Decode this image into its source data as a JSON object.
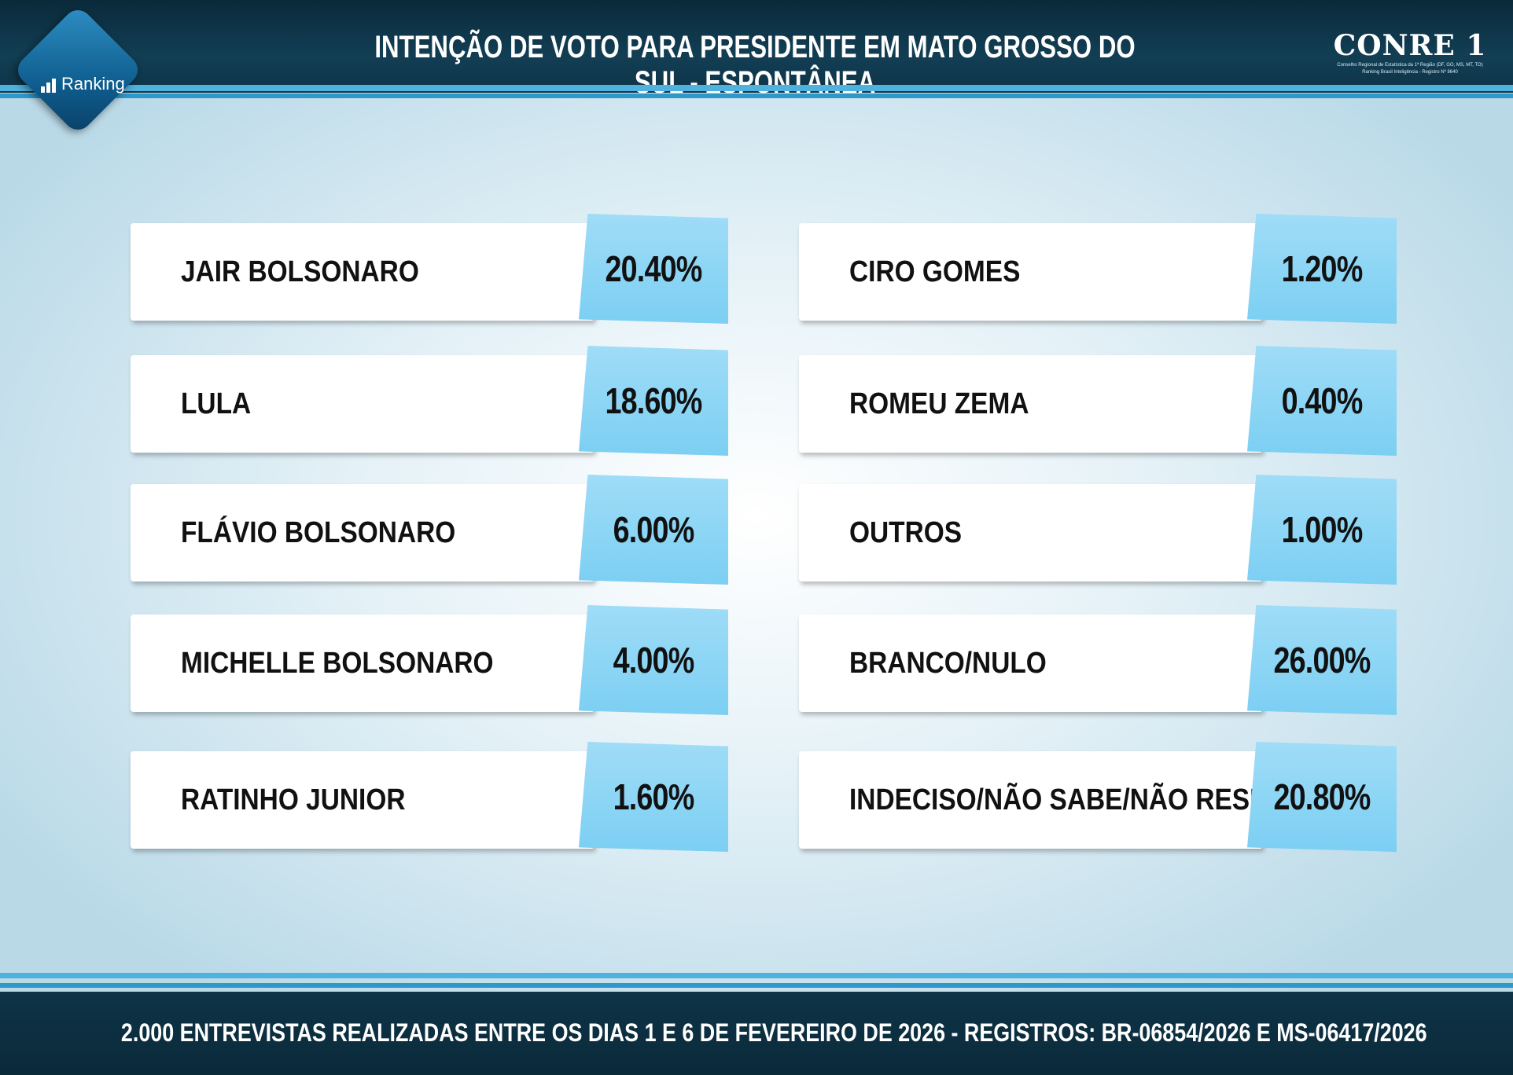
{
  "header": {
    "title": "INTENÇÃO DE VOTO PARA PRESIDENTE EM MATO GROSSO DO SUL - ESPONTÂNEA",
    "logo_label": "Ranking",
    "conre_name": "CONRE 1",
    "conre_sub1": "Conselho Regional de Estatística da 1ª Região (DF, GO, MS, MT, TO)",
    "conre_sub2": "Ranking Brasil Inteligência - Registro Nº 8640"
  },
  "left_column": [
    {
      "name": "JAIR BOLSONARO",
      "value": "20.40%"
    },
    {
      "name": "LULA",
      "value": "18.60%"
    },
    {
      "name": "FLÁVIO BOLSONARO",
      "value": "6.00%"
    },
    {
      "name": "MICHELLE BOLSONARO",
      "value": "4.00%"
    },
    {
      "name": "RATINHO JUNIOR",
      "value": "1.60%"
    }
  ],
  "right_column": [
    {
      "name": "CIRO GOMES",
      "value": "1.20%"
    },
    {
      "name": "ROMEU ZEMA",
      "value": "0.40%"
    },
    {
      "name": "OUTROS",
      "value": "1.00%"
    },
    {
      "name": "BRANCO/NULO",
      "value": "26.00%"
    },
    {
      "name": "INDECISO/NÃO SABE/NÃO RESP.",
      "value": "20.80%"
    }
  ],
  "footer": {
    "text": "2.000 ENTREVISTAS REALIZADAS ENTRE OS DIAS 1 E 6 DE FEVEREIRO DE 2026 - REGISTROS: BR-06854/2026 E MS-06417/2026"
  },
  "colors": {
    "header_bg": "#123e54",
    "stripe": "#4fb2de",
    "value_box": "#7ccff3"
  }
}
